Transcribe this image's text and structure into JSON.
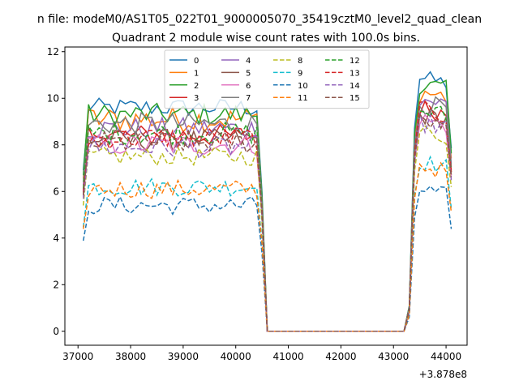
{
  "figure": {
    "suptitle": "n file: modeM0/AS1T05_022T01_9000005070_35419cztM0_level2_quad_clean",
    "title": "Quadrant 2 module wise count rates with 100.0s bins.",
    "offset_label": "+3.878e8"
  },
  "chart_data": {
    "type": "line",
    "title": "Quadrant 2 module wise count rates with 100.0s bins.",
    "xlabel": "",
    "ylabel": "",
    "x_offset": 387800000,
    "xlim": [
      36750,
      44400
    ],
    "ylim": [
      -0.6,
      12.2
    ],
    "xticks": [
      37000,
      38000,
      39000,
      40000,
      41000,
      42000,
      43000,
      44000
    ],
    "yticks": [
      0,
      2,
      4,
      6,
      8,
      10,
      12
    ],
    "grid": false,
    "legend": {
      "placement": "top-center",
      "columns": 4
    },
    "profile": {
      "x_first_bin": 37100,
      "bin_width": 100,
      "active_1": [
        37100,
        40400
      ],
      "transition_down": [
        [
          40500,
          0.62
        ],
        [
          40600,
          0.0
        ]
      ],
      "gap": [
        40600,
        43200
      ],
      "transition_up": [
        [
          43300,
          0.1
        ],
        [
          43400,
          0.8
        ]
      ],
      "active_2": [
        43500,
        44000
      ],
      "end": [
        44100,
        0.72
      ]
    },
    "series": [
      {
        "name": "0",
        "color": "#1f77b4",
        "style": "solid",
        "level": 9.6,
        "level2": 10.9,
        "noise": 0.25
      },
      {
        "name": "1",
        "color": "#ff7f0e",
        "style": "solid",
        "level": 9.1,
        "level2": 10.3,
        "noise": 0.35
      },
      {
        "name": "2",
        "color": "#2ca02c",
        "style": "solid",
        "level": 9.3,
        "level2": 10.6,
        "noise": 0.3
      },
      {
        "name": "3",
        "color": "#d62728",
        "style": "solid",
        "level": 8.4,
        "level2": 9.6,
        "noise": 0.3
      },
      {
        "name": "4",
        "color": "#9467bd",
        "style": "solid",
        "level": 8.7,
        "level2": 10.0,
        "noise": 0.3
      },
      {
        "name": "5",
        "color": "#8c564b",
        "style": "solid",
        "level": 8.2,
        "level2": 9.3,
        "noise": 0.3
      },
      {
        "name": "6",
        "color": "#e377c2",
        "style": "solid",
        "level": 8.0,
        "level2": 9.1,
        "noise": 0.3
      },
      {
        "name": "7",
        "color": "#7f7f7f",
        "style": "solid",
        "level": 8.9,
        "level2": 9.8,
        "noise": 0.3
      },
      {
        "name": "8",
        "color": "#bcbd22",
        "style": "dashed",
        "level": 7.5,
        "level2": 8.6,
        "noise": 0.25
      },
      {
        "name": "9",
        "color": "#17becf",
        "style": "dashed",
        "level": 6.2,
        "level2": 7.3,
        "noise": 0.25
      },
      {
        "name": "10",
        "color": "#1f77b4",
        "style": "dashed",
        "level": 5.4,
        "level2": 6.1,
        "noise": 0.25
      },
      {
        "name": "11",
        "color": "#ff7f0e",
        "style": "dashed",
        "level": 6.1,
        "level2": 7.1,
        "noise": 0.25
      },
      {
        "name": "12",
        "color": "#2ca02c",
        "style": "dashed",
        "level": 8.5,
        "level2": 9.5,
        "noise": 0.3
      },
      {
        "name": "13",
        "color": "#d62728",
        "style": "dashed",
        "level": 8.3,
        "level2": 9.5,
        "noise": 0.3
      },
      {
        "name": "14",
        "color": "#9467bd",
        "style": "dashed",
        "level": 7.9,
        "level2": 9.0,
        "noise": 0.3
      },
      {
        "name": "15",
        "color": "#8c564b",
        "style": "dashed",
        "level": 8.1,
        "level2": 9.2,
        "noise": 0.3
      }
    ]
  }
}
